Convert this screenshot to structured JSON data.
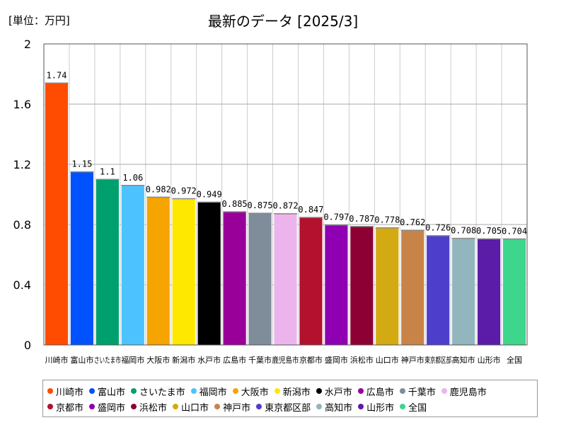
{
  "header": {
    "unit_label": "[単位：万円]",
    "title": "最新のデータ [2025/3]"
  },
  "chart_data": {
    "type": "bar",
    "title": "最新のデータ [2025/3]",
    "unit": "[単位：万円]",
    "ylim": [
      0,
      2
    ],
    "yticks": [
      0,
      0.4,
      0.8,
      1.2,
      1.6,
      2
    ],
    "ytick_labels": [
      "0",
      "0.4",
      "0.8",
      "1.2",
      "1.6",
      "2"
    ],
    "grid": true,
    "legend_position": "bottom",
    "categories": [
      "川崎市",
      "富山市",
      "さいたま市",
      "福岡市",
      "大阪市",
      "新潟市",
      "水戸市",
      "広島市",
      "千葉市",
      "鹿児島市",
      "京都市",
      "盛岡市",
      "浜松市",
      "山口市",
      "神戸市",
      "東京都区部",
      "高知市",
      "山形市",
      "全国"
    ],
    "values": [
      1.74,
      1.15,
      1.1,
      1.06,
      0.982,
      0.972,
      0.949,
      0.885,
      0.875,
      0.872,
      0.847,
      0.797,
      0.787,
      0.778,
      0.762,
      0.726,
      0.708,
      0.705,
      0.704
    ],
    "value_labels": [
      "1.74",
      "1.15",
      "1.1",
      "1.06",
      "0.982",
      "0.972",
      "0.949",
      "0.885",
      "0.875",
      "0.872",
      "0.847",
      "0.797",
      "0.787",
      "0.778",
      "0.762",
      "0.726",
      "0.708",
      "0.705",
      "0.704"
    ],
    "colors": [
      "#ff4c00",
      "#0052ff",
      "#00a06e",
      "#4cc3ff",
      "#f5a400",
      "#ffe800",
      "#000000",
      "#990099",
      "#7f8c99",
      "#ecb4ec",
      "#b3112e",
      "#8f00b3",
      "#8c0033",
      "#d4aa12",
      "#c88448",
      "#4d3fcc",
      "#93b5bd",
      "#5b1ca8",
      "#3dd68c"
    ]
  }
}
